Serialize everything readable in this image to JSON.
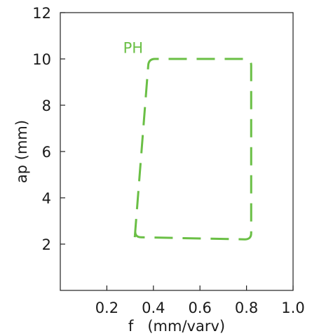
{
  "chart_data": {
    "type": "line",
    "xlabel": "f   (mm/varv)",
    "ylabel": "ap (mm)",
    "xlim": [
      0,
      1.0
    ],
    "ylim": [
      0,
      12
    ],
    "xticks": [
      0.2,
      0.4,
      0.6,
      0.8,
      1.0
    ],
    "yticks": [
      2,
      4,
      6,
      8,
      10,
      12
    ],
    "xtick_labels": [
      "0.2",
      "0.4",
      "0.6",
      "0.8",
      "1.0"
    ],
    "ytick_labels": [
      "2",
      "4",
      "6",
      "8",
      "10",
      "12"
    ],
    "grid": false,
    "annotation": {
      "text": "PH",
      "x": 0.27,
      "y": 10.5
    },
    "series": [
      {
        "color": "#6abf45",
        "style": "dashed-outline",
        "points": [
          {
            "x": 0.32,
            "y": 2.3
          },
          {
            "x": 0.38,
            "y": 10.0
          },
          {
            "x": 0.82,
            "y": 10.0
          },
          {
            "x": 0.82,
            "y": 2.2
          }
        ]
      }
    ]
  }
}
